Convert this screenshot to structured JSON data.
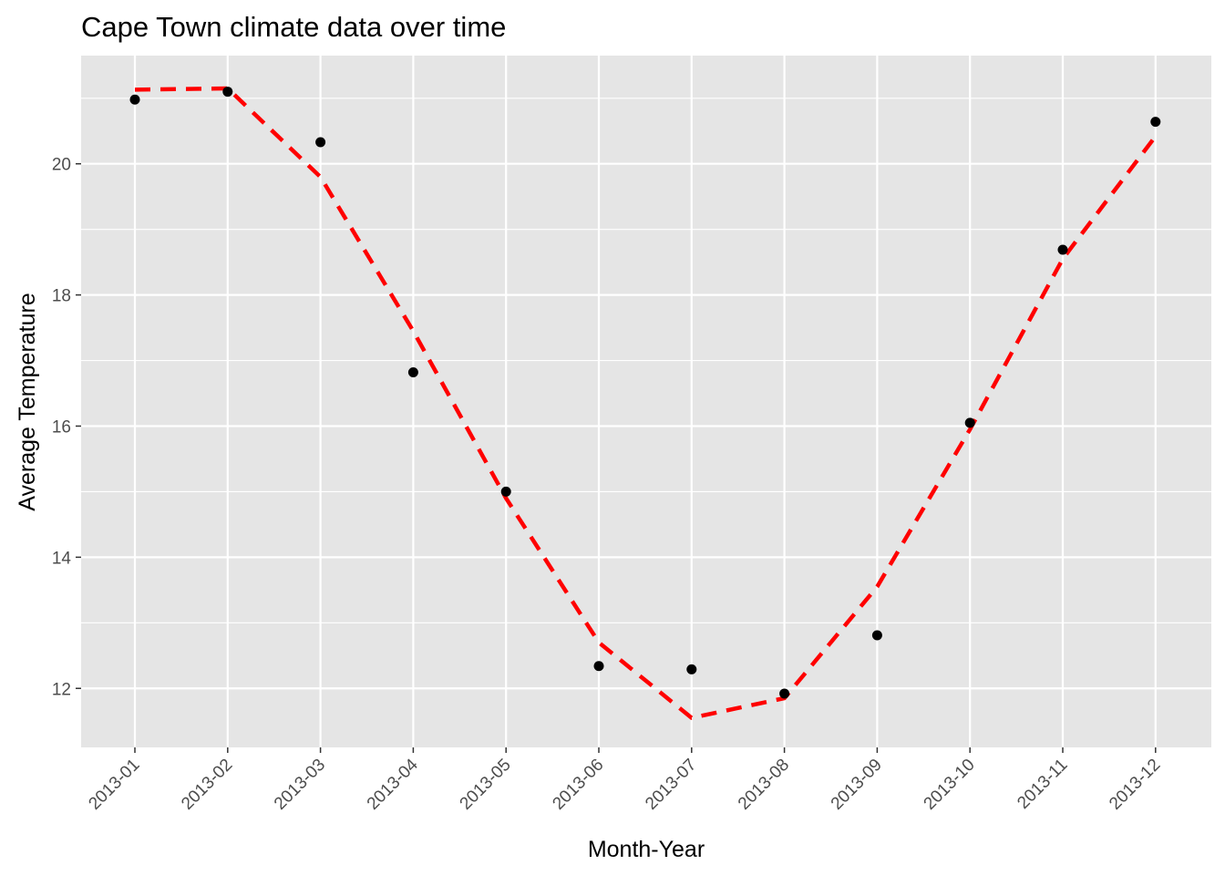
{
  "chart_data": {
    "type": "scatter",
    "title": "Cape Town climate data over time",
    "xlabel": "Month-Year",
    "ylabel": "Average Temperature",
    "categories": [
      "2013-01",
      "2013-02",
      "2013-03",
      "2013-04",
      "2013-05",
      "2013-06",
      "2013-07",
      "2013-08",
      "2013-09",
      "2013-10",
      "2013-11",
      "2013-12"
    ],
    "points": [
      20.98,
      21.1,
      20.33,
      16.82,
      15.0,
      12.34,
      12.29,
      11.92,
      12.81,
      16.05,
      18.69,
      20.64
    ],
    "trend": [
      21.13,
      21.15,
      19.8,
      17.45,
      14.9,
      12.7,
      11.55,
      11.85,
      13.55,
      15.95,
      18.55,
      20.42
    ],
    "ylim": [
      11.1,
      21.65
    ],
    "yticks": [
      12,
      14,
      16,
      18,
      20
    ],
    "grid": true,
    "colors": {
      "panel": "#e5e5e5",
      "grid": "#ffffff",
      "points": "#000000",
      "trend": "#ff0000"
    }
  }
}
